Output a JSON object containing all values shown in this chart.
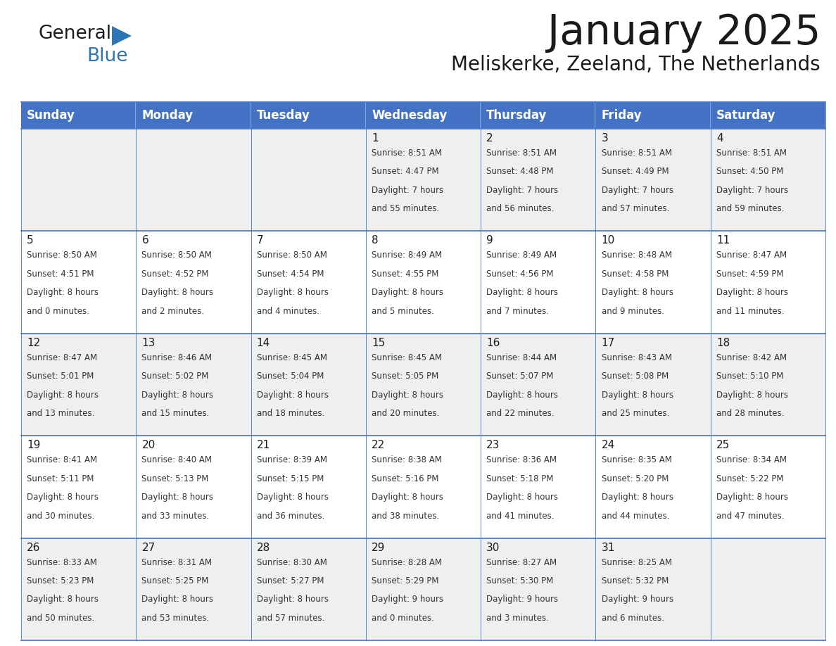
{
  "title": "January 2025",
  "subtitle": "Meliskerke, Zeeland, The Netherlands",
  "header_bg_color": "#4472C4",
  "header_text_color": "#FFFFFF",
  "cell_bg_even": "#EFEFEF",
  "cell_bg_odd": "#FFFFFF",
  "grid_line_color": "#4472C4",
  "day_names": [
    "Sunday",
    "Monday",
    "Tuesday",
    "Wednesday",
    "Thursday",
    "Friday",
    "Saturday"
  ],
  "title_color": "#1a1a1a",
  "subtitle_color": "#1a1a1a",
  "cell_text_color": "#333333",
  "day_num_color": "#1a1a1a",
  "logo_general_color": "#1a1a1a",
  "logo_blue_color": "#2E75B6",
  "weeks": [
    [
      {
        "day": "",
        "sunrise": "",
        "sunset": "",
        "daylight_h": "",
        "daylight_m": ""
      },
      {
        "day": "",
        "sunrise": "",
        "sunset": "",
        "daylight_h": "",
        "daylight_m": ""
      },
      {
        "day": "",
        "sunrise": "",
        "sunset": "",
        "daylight_h": "",
        "daylight_m": ""
      },
      {
        "day": "1",
        "sunrise": "8:51 AM",
        "sunset": "4:47 PM",
        "daylight_h": "7 hours",
        "daylight_m": "55 minutes."
      },
      {
        "day": "2",
        "sunrise": "8:51 AM",
        "sunset": "4:48 PM",
        "daylight_h": "7 hours",
        "daylight_m": "56 minutes."
      },
      {
        "day": "3",
        "sunrise": "8:51 AM",
        "sunset": "4:49 PM",
        "daylight_h": "7 hours",
        "daylight_m": "57 minutes."
      },
      {
        "day": "4",
        "sunrise": "8:51 AM",
        "sunset": "4:50 PM",
        "daylight_h": "7 hours",
        "daylight_m": "59 minutes."
      }
    ],
    [
      {
        "day": "5",
        "sunrise": "8:50 AM",
        "sunset": "4:51 PM",
        "daylight_h": "8 hours",
        "daylight_m": "0 minutes."
      },
      {
        "day": "6",
        "sunrise": "8:50 AM",
        "sunset": "4:52 PM",
        "daylight_h": "8 hours",
        "daylight_m": "2 minutes."
      },
      {
        "day": "7",
        "sunrise": "8:50 AM",
        "sunset": "4:54 PM",
        "daylight_h": "8 hours",
        "daylight_m": "4 minutes."
      },
      {
        "day": "8",
        "sunrise": "8:49 AM",
        "sunset": "4:55 PM",
        "daylight_h": "8 hours",
        "daylight_m": "5 minutes."
      },
      {
        "day": "9",
        "sunrise": "8:49 AM",
        "sunset": "4:56 PM",
        "daylight_h": "8 hours",
        "daylight_m": "7 minutes."
      },
      {
        "day": "10",
        "sunrise": "8:48 AM",
        "sunset": "4:58 PM",
        "daylight_h": "8 hours",
        "daylight_m": "9 minutes."
      },
      {
        "day": "11",
        "sunrise": "8:47 AM",
        "sunset": "4:59 PM",
        "daylight_h": "8 hours",
        "daylight_m": "11 minutes."
      }
    ],
    [
      {
        "day": "12",
        "sunrise": "8:47 AM",
        "sunset": "5:01 PM",
        "daylight_h": "8 hours",
        "daylight_m": "13 minutes."
      },
      {
        "day": "13",
        "sunrise": "8:46 AM",
        "sunset": "5:02 PM",
        "daylight_h": "8 hours",
        "daylight_m": "15 minutes."
      },
      {
        "day": "14",
        "sunrise": "8:45 AM",
        "sunset": "5:04 PM",
        "daylight_h": "8 hours",
        "daylight_m": "18 minutes."
      },
      {
        "day": "15",
        "sunrise": "8:45 AM",
        "sunset": "5:05 PM",
        "daylight_h": "8 hours",
        "daylight_m": "20 minutes."
      },
      {
        "day": "16",
        "sunrise": "8:44 AM",
        "sunset": "5:07 PM",
        "daylight_h": "8 hours",
        "daylight_m": "22 minutes."
      },
      {
        "day": "17",
        "sunrise": "8:43 AM",
        "sunset": "5:08 PM",
        "daylight_h": "8 hours",
        "daylight_m": "25 minutes."
      },
      {
        "day": "18",
        "sunrise": "8:42 AM",
        "sunset": "5:10 PM",
        "daylight_h": "8 hours",
        "daylight_m": "28 minutes."
      }
    ],
    [
      {
        "day": "19",
        "sunrise": "8:41 AM",
        "sunset": "5:11 PM",
        "daylight_h": "8 hours",
        "daylight_m": "30 minutes."
      },
      {
        "day": "20",
        "sunrise": "8:40 AM",
        "sunset": "5:13 PM",
        "daylight_h": "8 hours",
        "daylight_m": "33 minutes."
      },
      {
        "day": "21",
        "sunrise": "8:39 AM",
        "sunset": "5:15 PM",
        "daylight_h": "8 hours",
        "daylight_m": "36 minutes."
      },
      {
        "day": "22",
        "sunrise": "8:38 AM",
        "sunset": "5:16 PM",
        "daylight_h": "8 hours",
        "daylight_m": "38 minutes."
      },
      {
        "day": "23",
        "sunrise": "8:36 AM",
        "sunset": "5:18 PM",
        "daylight_h": "8 hours",
        "daylight_m": "41 minutes."
      },
      {
        "day": "24",
        "sunrise": "8:35 AM",
        "sunset": "5:20 PM",
        "daylight_h": "8 hours",
        "daylight_m": "44 minutes."
      },
      {
        "day": "25",
        "sunrise": "8:34 AM",
        "sunset": "5:22 PM",
        "daylight_h": "8 hours",
        "daylight_m": "47 minutes."
      }
    ],
    [
      {
        "day": "26",
        "sunrise": "8:33 AM",
        "sunset": "5:23 PM",
        "daylight_h": "8 hours",
        "daylight_m": "50 minutes."
      },
      {
        "day": "27",
        "sunrise": "8:31 AM",
        "sunset": "5:25 PM",
        "daylight_h": "8 hours",
        "daylight_m": "53 minutes."
      },
      {
        "day": "28",
        "sunrise": "8:30 AM",
        "sunset": "5:27 PM",
        "daylight_h": "8 hours",
        "daylight_m": "57 minutes."
      },
      {
        "day": "29",
        "sunrise": "8:28 AM",
        "sunset": "5:29 PM",
        "daylight_h": "9 hours",
        "daylight_m": "0 minutes."
      },
      {
        "day": "30",
        "sunrise": "8:27 AM",
        "sunset": "5:30 PM",
        "daylight_h": "9 hours",
        "daylight_m": "3 minutes."
      },
      {
        "day": "31",
        "sunrise": "8:25 AM",
        "sunset": "5:32 PM",
        "daylight_h": "9 hours",
        "daylight_m": "6 minutes."
      },
      {
        "day": "",
        "sunrise": "",
        "sunset": "",
        "daylight_h": "",
        "daylight_m": ""
      }
    ]
  ]
}
